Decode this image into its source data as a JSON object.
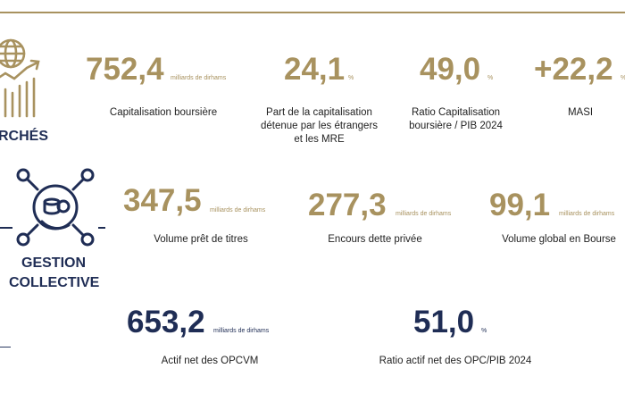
{
  "colors": {
    "gold": "#a8925f",
    "navy": "#1f2d55"
  },
  "marches": {
    "title": "RCHÉS",
    "icon": "globe-growth-chart-icon",
    "kpis": [
      {
        "value": "752,4",
        "unit": "milliards de dirhams",
        "label": "Capitalisation boursière"
      },
      {
        "value": "24,1",
        "unit": "%",
        "label": "Part de la capitalisation détenue par les étrangers et les MRE"
      },
      {
        "value": "49,0",
        "unit": "%",
        "label": "Ratio Capitalisation boursière / PIB 2024"
      },
      {
        "value": "+22,2",
        "unit": "%",
        "label": "MASI"
      }
    ]
  },
  "gestion": {
    "title_line1": "GESTION",
    "title_line2": "COLLECTIVE",
    "icon": "coins-network-icon",
    "kpis": [
      {
        "value": "347,5",
        "unit": "milliards de dirhams",
        "label": "Volume prêt de titres"
      },
      {
        "value": "277,3",
        "unit": "milliards de dirhams",
        "label": "Encours dette privée"
      },
      {
        "value": "99,1",
        "unit": "milliards de dirhams",
        "label": "Volume global en Bourse"
      }
    ]
  },
  "opc": {
    "kpis": [
      {
        "value": "653,2",
        "unit": "milliards de dirhams",
        "label": "Actif net des OPCVM"
      },
      {
        "value": "51,0",
        "unit": "%",
        "label": "Ratio actif  net des OPC/PIB 2024"
      }
    ]
  }
}
